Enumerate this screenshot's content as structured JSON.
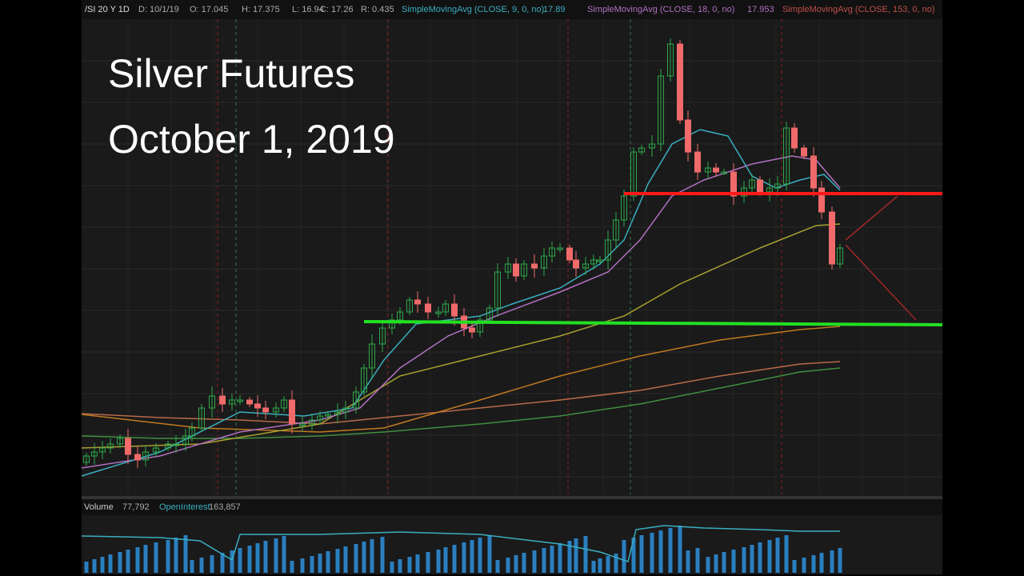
{
  "header": {
    "symbol": "/SI 20 Y 1D",
    "date": "D: 10/1/19",
    "open": "O: 17.045",
    "high": "H: 17.375",
    "low": "L: 16.94",
    "close": "C: 17.26",
    "range": "R: 0.435",
    "studies": [
      {
        "label": "SimpleMovingAvg (CLOSE, 9, 0, no)",
        "value": "17.89"
      },
      {
        "label": "SimpleMovingAvg (CLOSE, 18, 0, no)",
        "value": "17.953"
      },
      {
        "label": "SimpleMovingAvg (CLOSE, 153, 0, no)"
      }
    ]
  },
  "overlay": {
    "title": "Silver Futures",
    "subtitle": "October 1, 2019"
  },
  "volume_panel": {
    "volume_label": "Volume",
    "volume_value": "77,792",
    "oi_label": "OpenInterest",
    "oi_value": "163,857"
  }
}
